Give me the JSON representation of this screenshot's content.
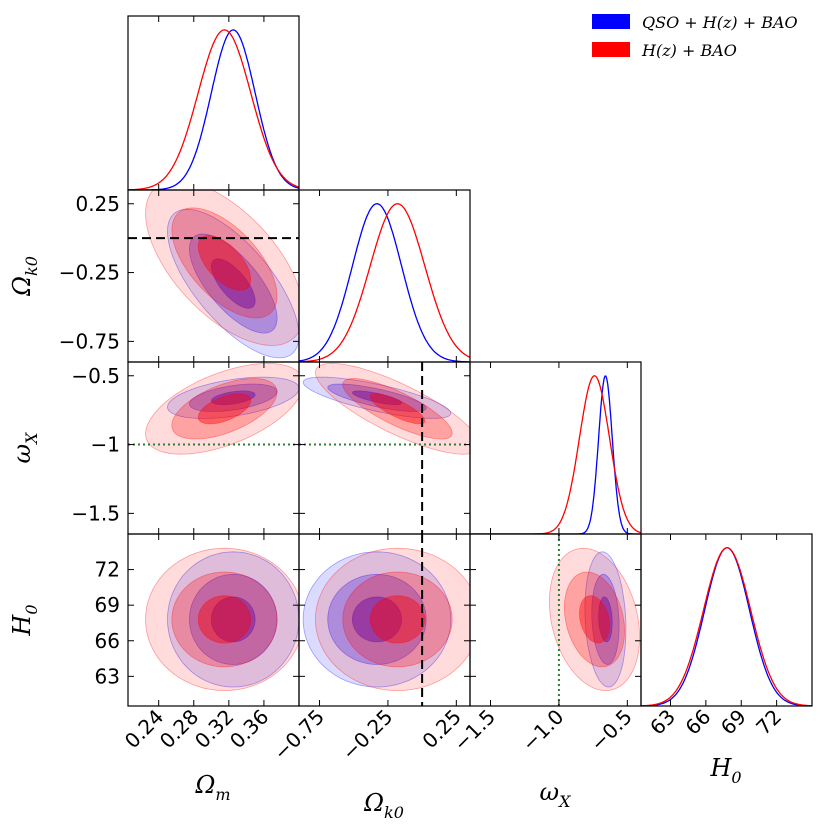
{
  "chart_data": {
    "type": "corner",
    "parameters": [
      {
        "symbol": "Ω_m",
        "sub": "m",
        "base": "Ω",
        "range": [
          0.205,
          0.4
        ],
        "ticks": [
          "0.24",
          "0.28",
          "0.32",
          "0.36"
        ],
        "tick_values": [
          0.24,
          0.28,
          0.32,
          0.36
        ]
      },
      {
        "symbol": "Ω_k0",
        "sub": "k0",
        "base": "Ω",
        "range": [
          -0.9,
          0.35
        ],
        "ticks": [
          "−0.75",
          "−0.25",
          "0.25"
        ],
        "tick_values": [
          -0.75,
          -0.25,
          0.25
        ]
      },
      {
        "symbol": "ω_X",
        "sub": "X",
        "base": "ω",
        "range": [
          -1.65,
          -0.4
        ],
        "ticks": [
          "−1.5",
          "−1",
          "−0.5"
        ],
        "tick_values": [
          -1.5,
          -1.0,
          -0.5
        ],
        "xticks": [
          "−1.5",
          "−1.0",
          "−0.5"
        ]
      },
      {
        "symbol": "H_0",
        "sub": "0",
        "base": "H",
        "range": [
          60.5,
          75
        ],
        "ticks": [
          "63",
          "66",
          "69",
          "72"
        ],
        "tick_values": [
          63,
          66,
          69,
          72
        ]
      }
    ],
    "series": [
      {
        "name": "QSO + H(z) + BAO",
        "color": "#0000ff",
        "means": [
          0.325,
          -0.33,
          -0.66,
          67.8
        ],
        "sigmas": [
          0.025,
          0.18,
          0.05,
          1.9
        ],
        "correlations": {
          "0-1": -0.7,
          "0-2": 0.45,
          "1-2": -0.75,
          "0-3": 0.0,
          "1-3": 0.0,
          "2-3": -0.15
        }
      },
      {
        "name": "H(z) + BAO",
        "color": "#ff0000",
        "means": [
          0.315,
          -0.18,
          -0.74,
          67.8
        ],
        "sigmas": [
          0.03,
          0.2,
          0.11,
          2.0
        ],
        "correlations": {
          "0-1": -0.6,
          "0-2": 0.55,
          "1-2": -0.8,
          "0-3": 0.0,
          "1-3": 0.0,
          "2-3": -0.25
        }
      }
    ],
    "reference_lines": [
      {
        "parameter": "Ω_k0",
        "value": 0.0,
        "style": "dashed",
        "color": "#000000"
      },
      {
        "parameter": "ω_X",
        "value": -1.0,
        "style": "dotted",
        "color": "#2e7d32"
      }
    ],
    "legend_position": "top-right"
  },
  "legend": {
    "items": [
      {
        "label": "QSO + H(z) + BAO",
        "color": "#0000ff"
      },
      {
        "label": "H(z) + BAO",
        "color": "#ff0000"
      }
    ]
  },
  "colors": {
    "blue": "#0000ff",
    "red": "#ff0000",
    "purple": "#8b0070",
    "ref_dashed": "#000000",
    "ref_dotted": "#2e7d32"
  }
}
